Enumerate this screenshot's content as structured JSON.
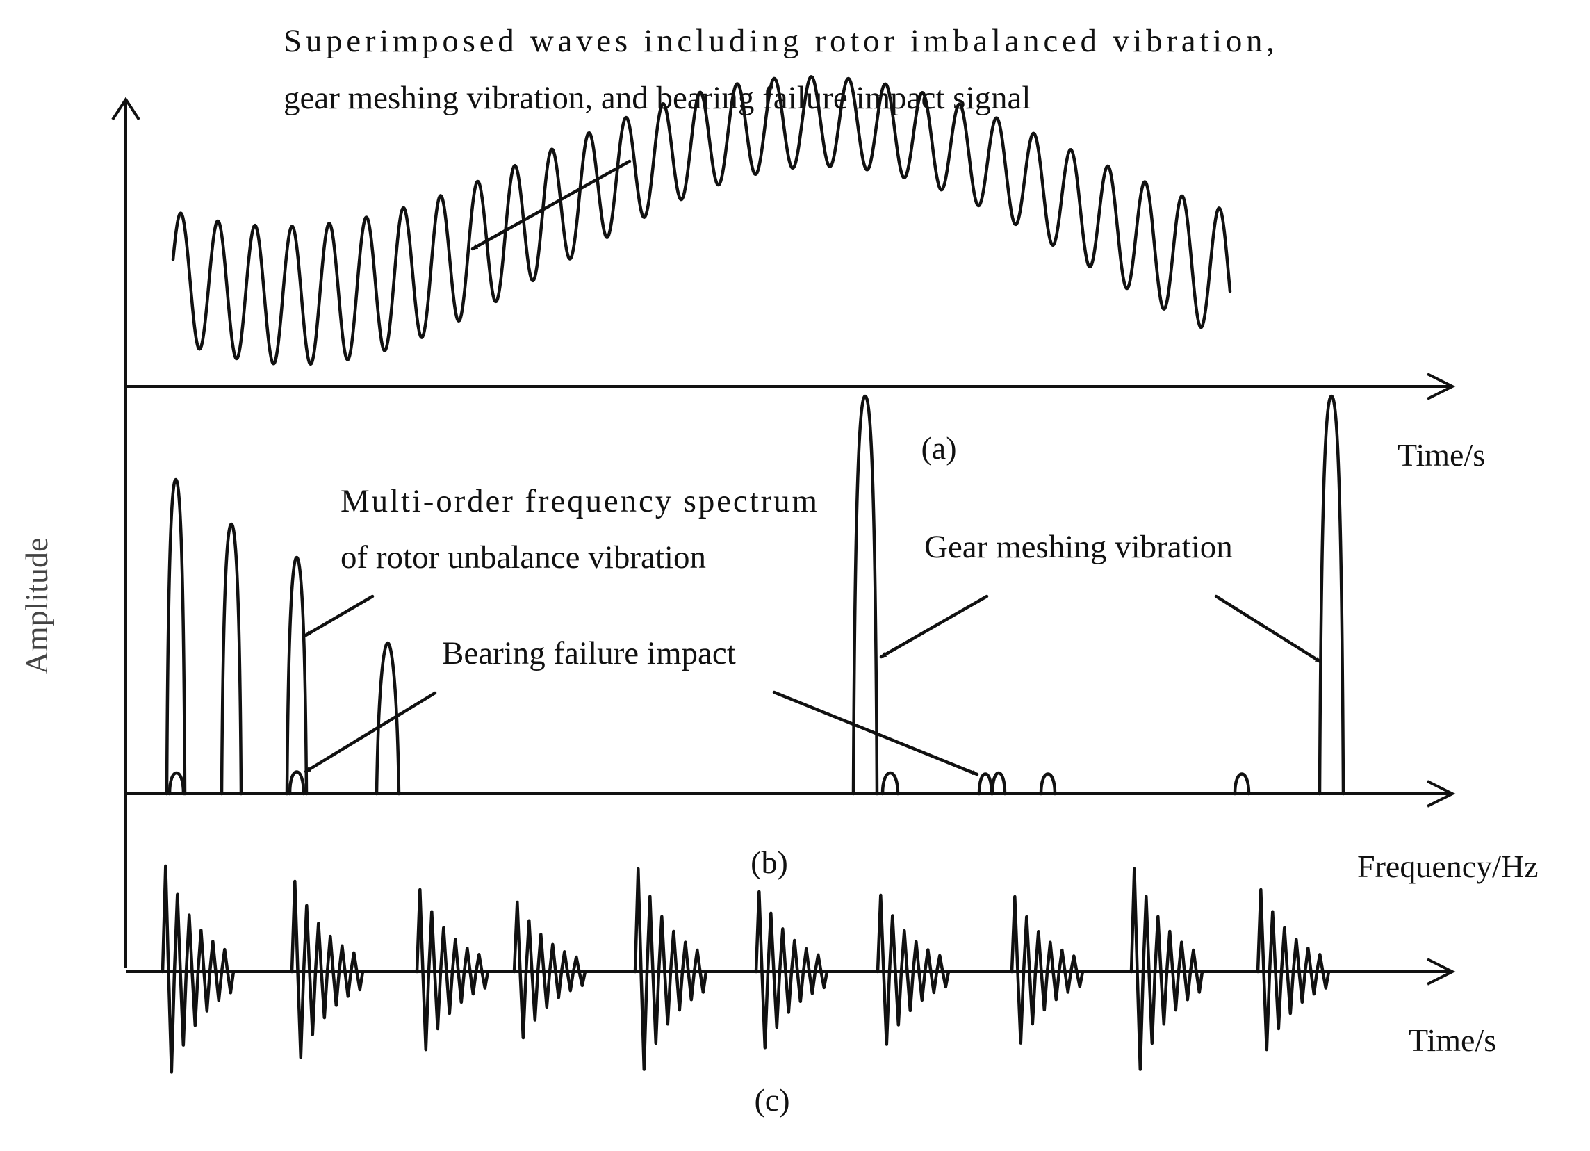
{
  "figure": {
    "y_axis_label": "Amplitude",
    "panel_a": {
      "caption": "(a)",
      "x_axis_label": "Time/s",
      "annotation": [
        "Superimposed waves including rotor imbalanced vibration,",
        "gear meshing vibration, and bearing failure impact signal"
      ]
    },
    "panel_b": {
      "caption": "(b)",
      "x_axis_label": "Frequency/Hz",
      "annotation_rotor": [
        "Multi-order frequency spectrum",
        "of rotor unbalance vibration"
      ],
      "annotation_bearing": "Bearing failure impact",
      "annotation_gear": "Gear meshing vibration"
    },
    "panel_c": {
      "caption": "(c)",
      "x_axis_label": "Time/s"
    }
  },
  "colors": {
    "line": "#111111",
    "axis_title": "#444444",
    "background": "#ffffff"
  }
}
